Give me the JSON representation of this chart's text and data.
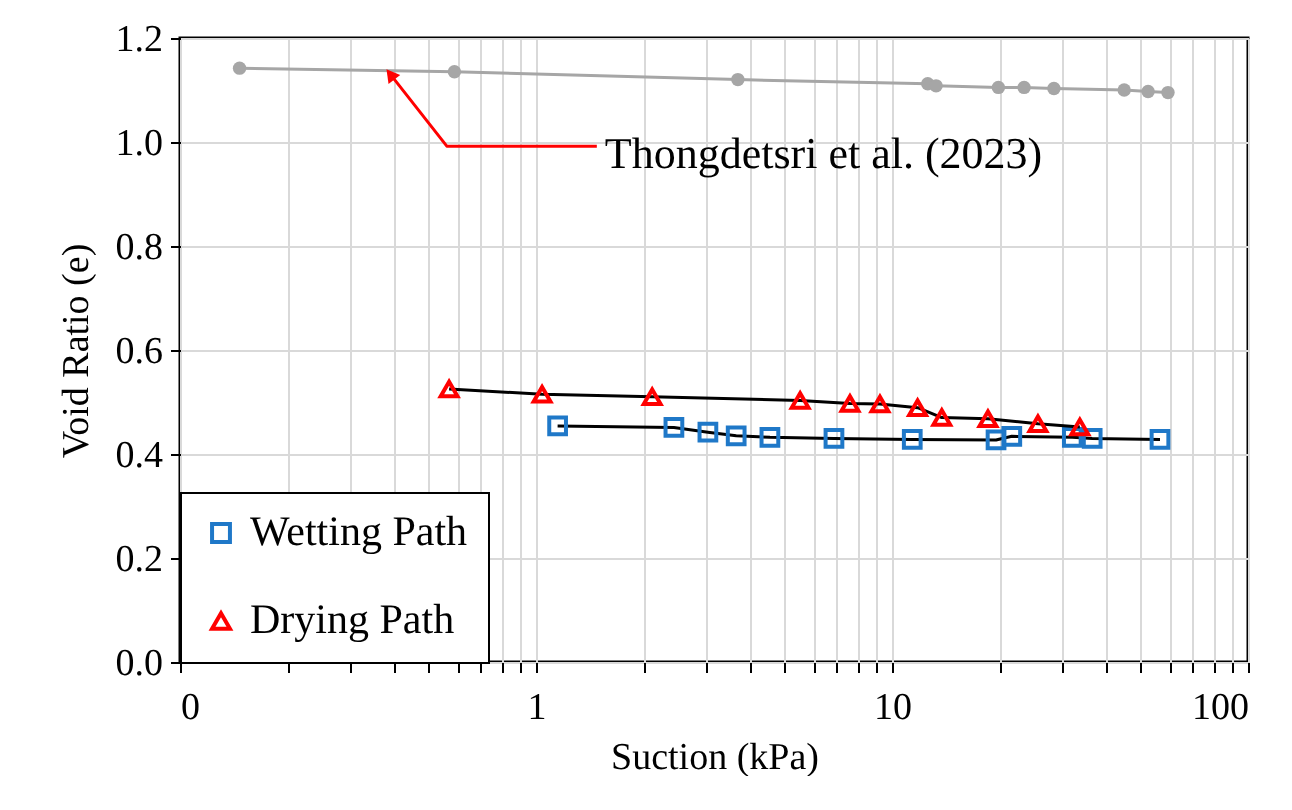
{
  "chart_data": {
    "type": "line",
    "xlabel": "Suction (kPa)",
    "ylabel": "Void Ratio (e)",
    "log": "x",
    "grid": true,
    "legend": "bottom left",
    "xlim": [
      0.1,
      100
    ],
    "xticks": [
      {
        "value": 0.1,
        "label": "0"
      },
      1,
      10,
      100
    ],
    "ylim": [
      0,
      1.2
    ],
    "yticks": [
      {
        "value": 0,
        "label": "0.0"
      },
      {
        "value": 0.2,
        "label": "0.2"
      },
      {
        "value": 0.4,
        "label": "0.4"
      },
      {
        "value": 0.6,
        "label": "0.6"
      },
      {
        "value": 0.8,
        "label": "0.8"
      },
      {
        "value": 1,
        "label": "1.0"
      },
      {
        "value": 1.2,
        "label": "1.2"
      }
    ],
    "annotations": [
      {
        "text": "Thongdetsri et al. (2023)",
        "x": 0.39,
        "y": 1.13
      }
    ],
    "series": [
      {
        "color": "#a6a6a6",
        "marker": "circle",
        "x": [
          0.147,
          0.59,
          3.69,
          12.6,
          13.3,
          19.9,
          23.5,
          28.5,
          44.9,
          52.4,
          59.6
        ],
        "values": [
          1.142,
          1.135,
          1.12,
          1.112,
          1.108,
          1.105,
          1.105,
          1.103,
          1.1,
          1.097,
          1.095
        ]
      },
      {
        "name": "Wetting Path",
        "color": "#1f78c8",
        "marker": "square",
        "x": [
          1.15,
          2.44,
          3.04,
          3.65,
          4.54,
          6.87,
          11.4,
          19.6,
          21.7,
          32.1,
          36.5,
          56.6
        ],
        "values": [
          0.454,
          0.451,
          0.442,
          0.435,
          0.432,
          0.43,
          0.428,
          0.427,
          0.434,
          0.432,
          0.43,
          0.428
        ]
      },
      {
        "name": "Drying Path",
        "color": "#ff0000",
        "marker": "triangle",
        "x": [
          0.57,
          1.04,
          2.12,
          5.52,
          7.62,
          9.25,
          11.8,
          13.8,
          18.6,
          25.7,
          33.7
        ],
        "values": [
          0.525,
          0.515,
          0.51,
          0.503,
          0.497,
          0.496,
          0.489,
          0.47,
          0.468,
          0.458,
          0.452
        ]
      }
    ]
  }
}
